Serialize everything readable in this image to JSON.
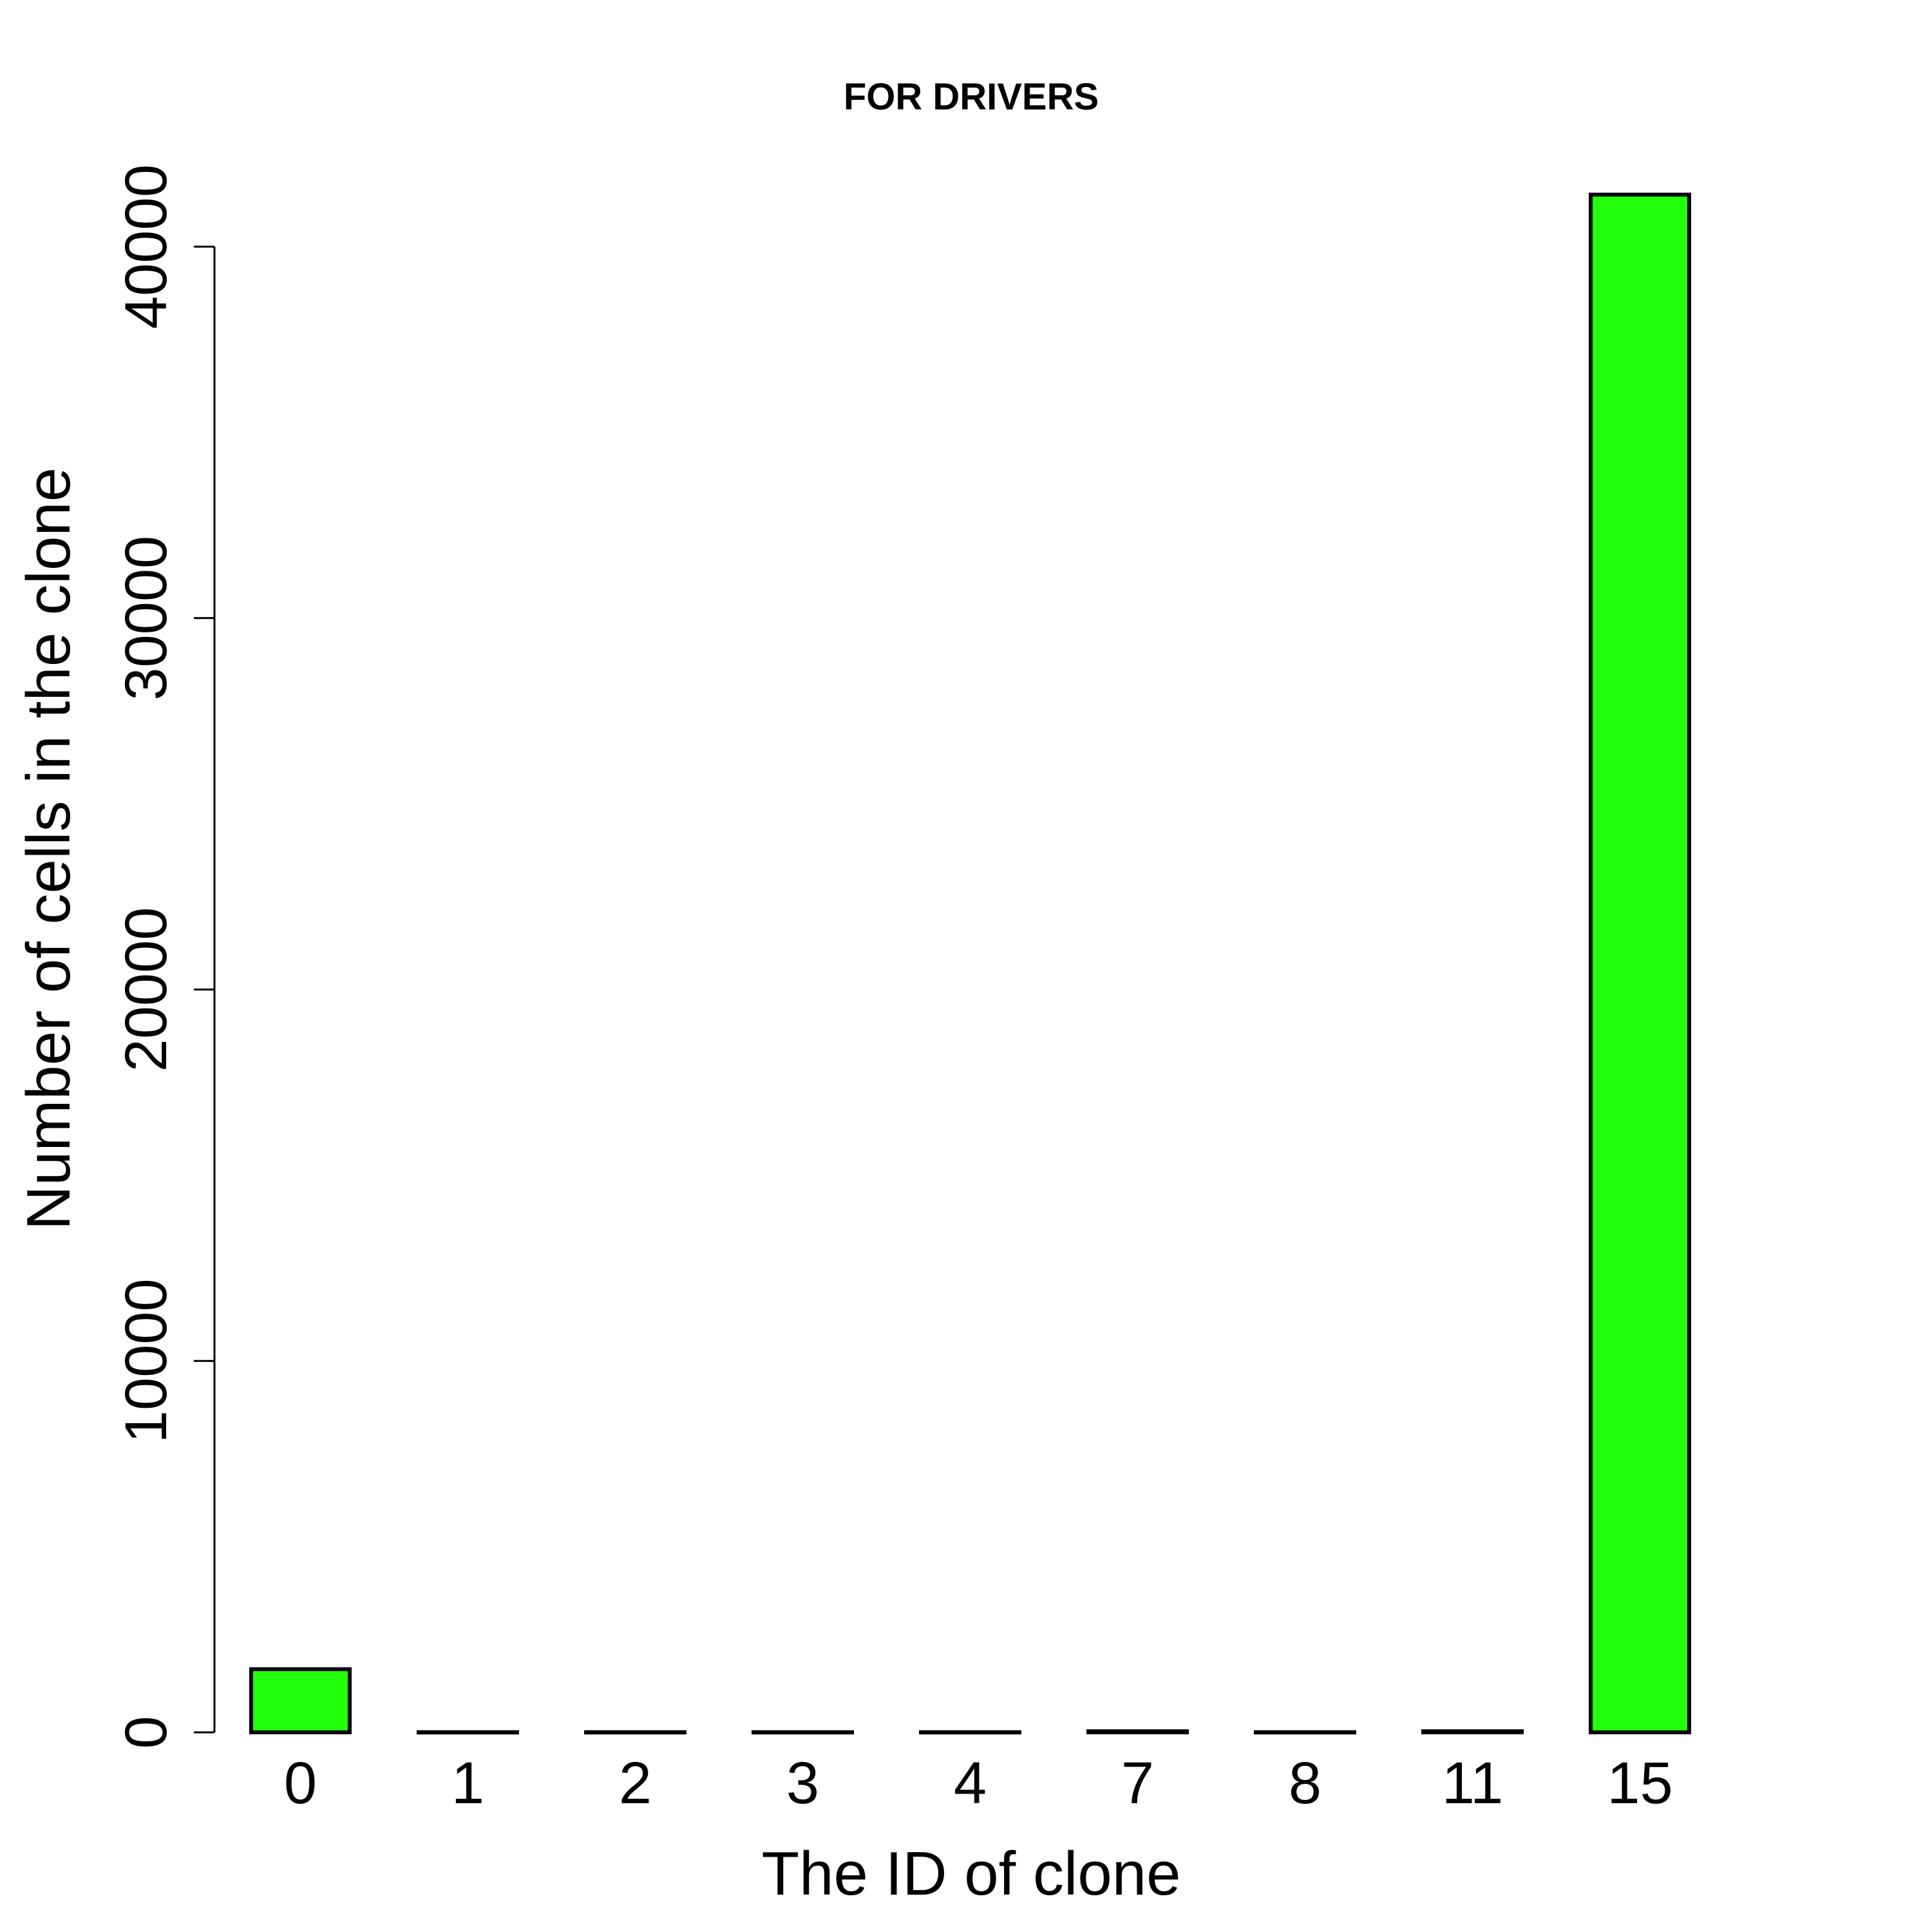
{
  "chart_data": {
    "type": "bar",
    "title": "FOR DRIVERS",
    "xlabel": "The ID of clone",
    "ylabel": "Number of cells in the clone",
    "categories": [
      "0",
      "1",
      "2",
      "3",
      "4",
      "7",
      "8",
      "11",
      "15"
    ],
    "values": [
      1700,
      5,
      5,
      5,
      5,
      30,
      5,
      30,
      41400
    ],
    "ylim": [
      0,
      40000
    ],
    "yticks": [
      0,
      10000,
      20000,
      30000,
      40000
    ],
    "bar_color": "#22ff0b",
    "grid": false,
    "legend": "none"
  }
}
